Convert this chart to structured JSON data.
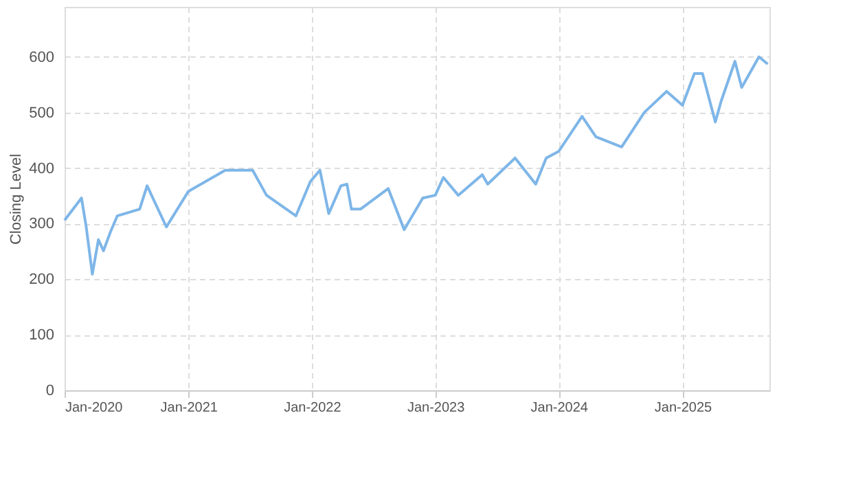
{
  "chart_data": {
    "type": "line",
    "ylabel": "Closing Level",
    "x": [
      "2020-01-01",
      "2020-02-20",
      "2020-03-05",
      "2020-03-23",
      "2020-04-10",
      "2020-04-25",
      "2020-05-15",
      "2020-06-05",
      "2020-08-10",
      "2020-09-01",
      "2020-10-28",
      "2021-01-01",
      "2021-04-20",
      "2021-07-10",
      "2021-08-20",
      "2021-11-15",
      "2021-12-28",
      "2022-01-25",
      "2022-02-20",
      "2022-03-28",
      "2022-04-15",
      "2022-04-28",
      "2022-05-25",
      "2022-08-15",
      "2022-10-01",
      "2022-11-25",
      "2023-01-01",
      "2023-01-25",
      "2023-03-10",
      "2023-05-20",
      "2023-06-05",
      "2023-08-25",
      "2023-10-25",
      "2023-11-25",
      "2024-01-01",
      "2024-03-10",
      "2024-04-20",
      "2024-07-05",
      "2024-09-10",
      "2024-11-15",
      "2025-01-01",
      "2025-02-05",
      "2025-03-01",
      "2025-04-08",
      "2025-04-25",
      "2025-06-05",
      "2025-06-25",
      "2025-08-15",
      "2025-09-10"
    ],
    "series": [
      {
        "color": "#7eb6e8",
        "values": [
          306,
          346,
          294,
          209,
          271,
          251,
          284,
          314,
          326,
          368,
          294,
          358,
          396,
          396,
          351,
          314,
          376,
          396,
          318,
          368,
          371,
          326,
          326,
          363,
          289,
          346,
          351,
          383,
          351,
          388,
          371,
          418,
          371,
          418,
          430,
          493,
          456,
          438,
          500,
          538,
          513,
          570,
          570,
          483,
          520,
          592,
          545,
          600,
          587
        ]
      }
    ],
    "xlim": [
      "2020-01-01",
      "2025-09-15"
    ],
    "xticks": [
      {
        "value": "2020-01",
        "label": "Jan-2020"
      },
      {
        "value": "2021-01",
        "label": "Jan-2021"
      },
      {
        "value": "2022-01",
        "label": "Jan-2022"
      },
      {
        "value": "2023-01",
        "label": "Jan-2023"
      },
      {
        "value": "2024-01",
        "label": "Jan-2024"
      },
      {
        "value": "2025-01",
        "label": "Jan-2025"
      }
    ],
    "ylim": [
      0,
      690
    ],
    "yticks": [
      0,
      100,
      200,
      300,
      400,
      500,
      600
    ],
    "grid": true,
    "line_style": "solid",
    "marker": "none"
  }
}
